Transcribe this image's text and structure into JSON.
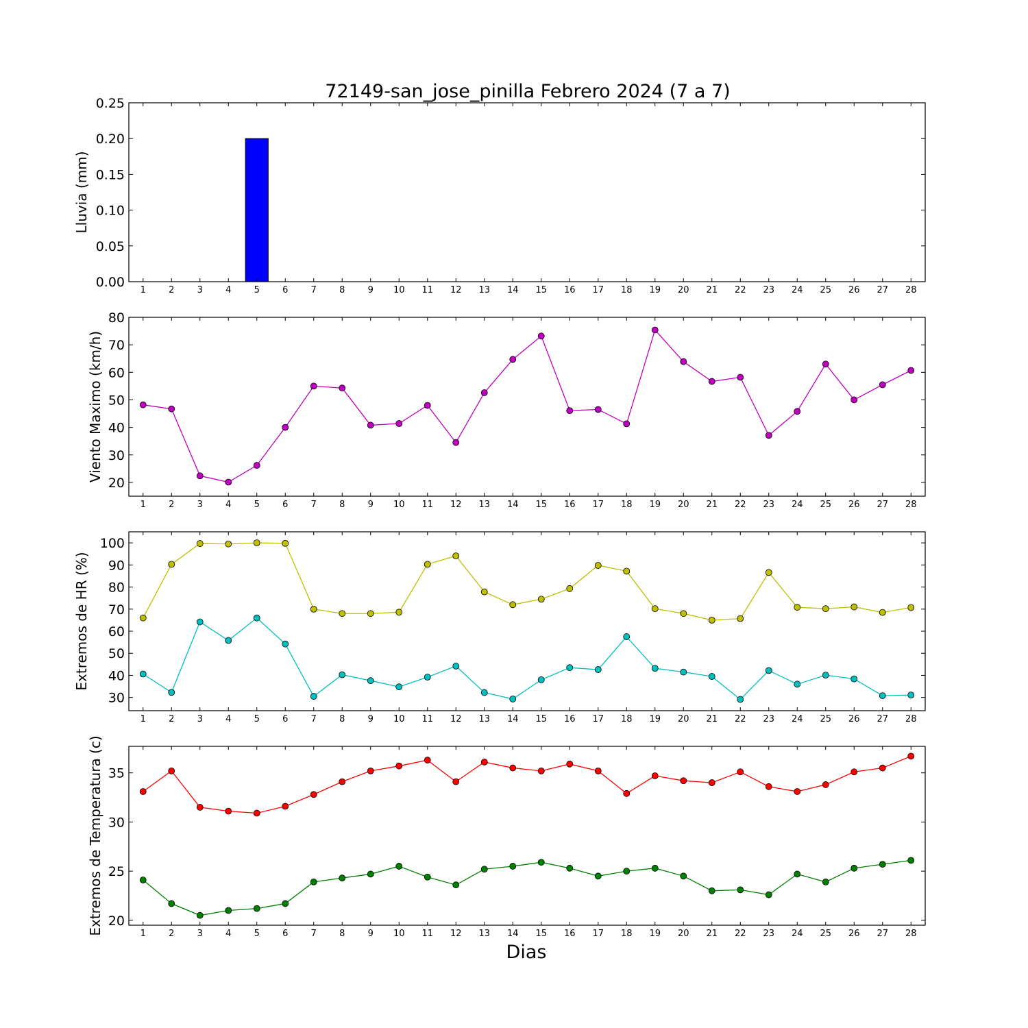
{
  "chart_data": {
    "type": "line",
    "title": "72149-san_jose_pinilla Febrero 2024  (7 a 7)",
    "xlabel": "Dias",
    "days": [
      1,
      2,
      3,
      4,
      5,
      6,
      7,
      8,
      9,
      10,
      11,
      12,
      13,
      14,
      15,
      16,
      17,
      18,
      19,
      20,
      21,
      22,
      23,
      24,
      25,
      26,
      27,
      28
    ],
    "panels": [
      {
        "kind": "bar",
        "ylabel": "Lluvia (mm)",
        "ylim": [
          0,
          0.25
        ],
        "yticks": [
          "0.00",
          "0.05",
          "0.10",
          "0.15",
          "0.20",
          "0.25"
        ],
        "series": [
          {
            "color": "#0000ff",
            "values": [
              0,
              0,
              0,
              0,
              0.2,
              0,
              0,
              0,
              0,
              0,
              0,
              0,
              0,
              0,
              0,
              0,
              0,
              0,
              0,
              0,
              0,
              0,
              0,
              0,
              0,
              0,
              0,
              0
            ]
          }
        ]
      },
      {
        "kind": "line",
        "ylabel": "Viento Maximo (km/h)",
        "ylim": [
          15,
          80
        ],
        "yticks": [
          "20",
          "30",
          "40",
          "50",
          "60",
          "70",
          "80"
        ],
        "series": [
          {
            "color": "#bf00bf",
            "values": [
              48.2,
              46.7,
              22.4,
              20.1,
              26.2,
              40.0,
              55.0,
              54.3,
              40.8,
              41.4,
              48.0,
              34.5,
              52.6,
              64.7,
              73.2,
              46.1,
              46.5,
              41.3,
              75.4,
              63.9,
              56.7,
              58.2,
              37.1,
              45.8,
              63.0,
              50.0,
              55.5,
              60.7
            ]
          }
        ]
      },
      {
        "kind": "line",
        "ylabel": "Extremos de HR (%)",
        "ylim": [
          24,
          105
        ],
        "yticks": [
          "30",
          "40",
          "50",
          "60",
          "70",
          "80",
          "90",
          "100"
        ],
        "series": [
          {
            "color": "#bfbf00",
            "values": [
              66.0,
              90.3,
              99.7,
              99.5,
              100.0,
              99.8,
              70.0,
              68.0,
              68.0,
              68.6,
              90.3,
              94.1,
              77.8,
              72.0,
              74.5,
              79.3,
              89.8,
              87.2,
              70.2,
              68.0,
              65.0,
              65.7,
              86.6,
              70.8,
              70.2,
              71.0,
              68.5,
              70.7
            ]
          },
          {
            "color": "#00bfbf",
            "values": [
              40.6,
              32.3,
              64.2,
              55.8,
              66.0,
              54.2,
              30.5,
              40.3,
              37.6,
              34.8,
              39.2,
              44.2,
              32.2,
              29.3,
              38.0,
              43.5,
              42.6,
              57.5,
              43.2,
              41.5,
              39.5,
              29.1,
              42.2,
              36.0,
              40.1,
              38.4,
              30.8,
              31.1
            ]
          }
        ]
      },
      {
        "kind": "line",
        "ylabel": "Extremos de Temperatura (c)",
        "ylim": [
          19.5,
          37.7
        ],
        "yticks": [
          "20",
          "25",
          "30",
          "35"
        ],
        "series": [
          {
            "color": "#ff0000",
            "values": [
              33.1,
              35.2,
              31.5,
              31.1,
              30.9,
              31.6,
              32.8,
              34.1,
              35.2,
              35.7,
              36.3,
              34.1,
              36.1,
              35.5,
              35.2,
              35.9,
              35.2,
              32.9,
              34.7,
              34.2,
              34.0,
              35.1,
              33.6,
              33.1,
              33.8,
              35.1,
              35.5,
              36.7
            ]
          },
          {
            "color": "#008000",
            "values": [
              24.1,
              21.7,
              20.5,
              21.0,
              21.2,
              21.7,
              23.9,
              24.3,
              24.7,
              25.5,
              24.4,
              23.6,
              25.2,
              25.5,
              25.9,
              25.3,
              24.5,
              25.0,
              25.3,
              24.5,
              23.0,
              23.1,
              22.6,
              24.7,
              23.9,
              25.3,
              25.7,
              26.1
            ]
          }
        ]
      }
    ]
  }
}
